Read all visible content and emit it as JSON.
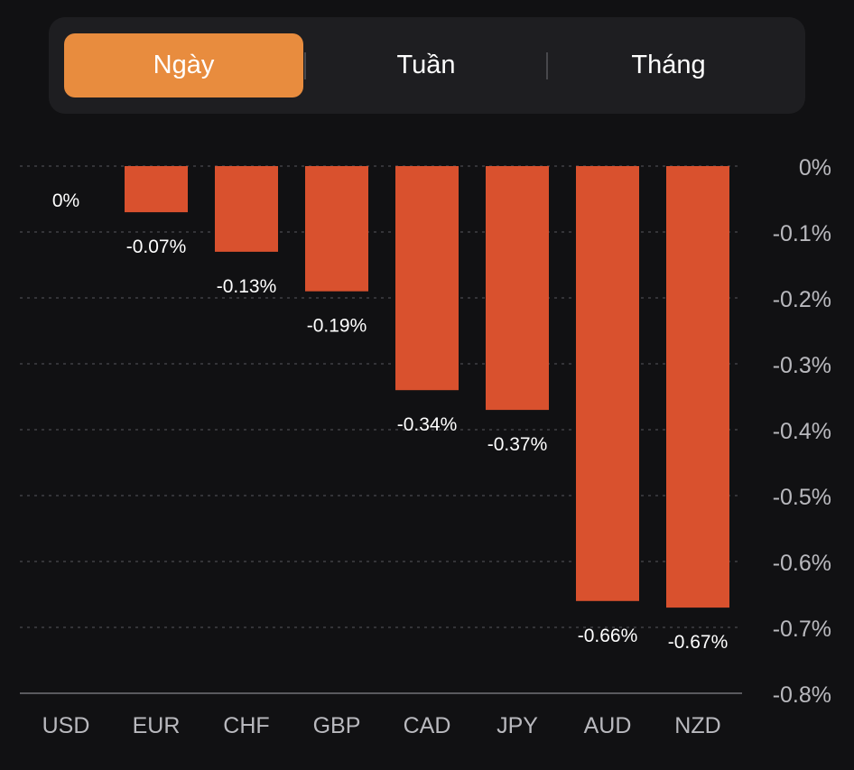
{
  "tabs": [
    {
      "label": "Ngày",
      "active": true
    },
    {
      "label": "Tuần",
      "active": false
    },
    {
      "label": "Tháng",
      "active": false
    }
  ],
  "colors": {
    "active_tab": "#e88c3e",
    "bar": "#d9512e",
    "label_text": "#ffffff",
    "axis_text": "#b9b9be",
    "grid": "#4a4a4e",
    "background": "#111113"
  },
  "chart_data": {
    "type": "bar",
    "categories": [
      "USD",
      "EUR",
      "CHF",
      "GBP",
      "CAD",
      "JPY",
      "AUD",
      "NZD"
    ],
    "values": [
      0,
      -0.07,
      -0.13,
      -0.19,
      -0.34,
      -0.37,
      -0.66,
      -0.67
    ],
    "value_labels": [
      "0%",
      "-0.07%",
      "-0.13%",
      "-0.19%",
      "-0.34%",
      "-0.37%",
      "-0.66%",
      "-0.67%"
    ],
    "y_ticks": [
      0,
      -0.1,
      -0.2,
      -0.3,
      -0.4,
      -0.5,
      -0.6,
      -0.7,
      -0.8
    ],
    "y_tick_labels": [
      "0%",
      "-0.1%",
      "-0.2%",
      "-0.3%",
      "-0.4%",
      "-0.5%",
      "-0.6%",
      "-0.7%",
      "-0.8%"
    ],
    "ylim": [
      -0.8,
      0
    ],
    "grid": true,
    "title": "",
    "xlabel": "",
    "ylabel": ""
  }
}
